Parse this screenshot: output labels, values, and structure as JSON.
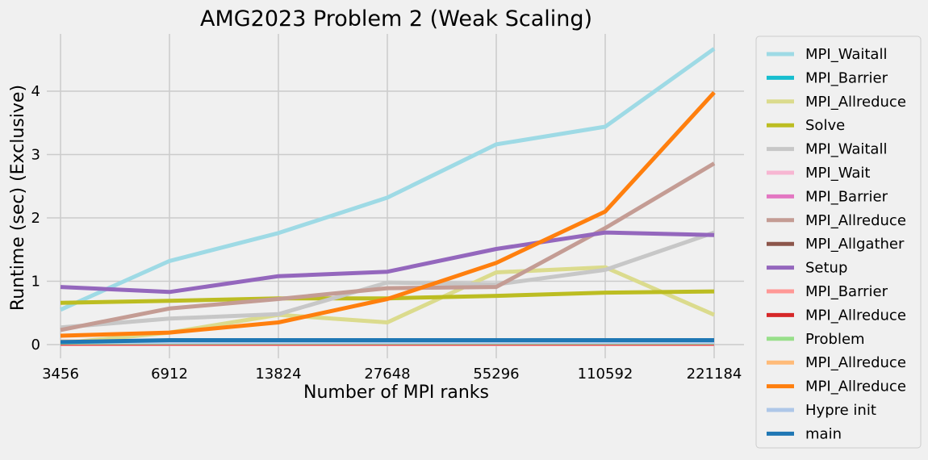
{
  "chart_data": {
    "type": "line",
    "title": "AMG2023 Problem 2 (Weak Scaling)",
    "xlabel": "Number of MPI ranks",
    "ylabel": "Runtime (sec) (Exclusive)",
    "categories": [
      "3456",
      "6912",
      "13824",
      "27648",
      "55296",
      "110592",
      "221184"
    ],
    "ylim": [
      0,
      4.9
    ],
    "yticks": [
      0,
      1,
      2,
      3,
      4
    ],
    "grid": true,
    "legend_position": "right-outside",
    "series": [
      {
        "name": "MPI_Waitall",
        "color": "#9edae5",
        "values": [
          0.55,
          1.32,
          1.76,
          2.32,
          3.16,
          3.44,
          4.67
        ]
      },
      {
        "name": "MPI_Barrier",
        "color": "#17becf",
        "values": [
          0.01,
          0.01,
          0.01,
          0.01,
          0.01,
          0.01,
          0.01
        ]
      },
      {
        "name": "MPI_Allreduce",
        "color": "#dbdb8d",
        "values": [
          0.02,
          0.19,
          0.47,
          0.35,
          1.14,
          1.22,
          0.47
        ]
      },
      {
        "name": "Solve",
        "color": "#bcbd22",
        "values": [
          0.66,
          0.69,
          0.73,
          0.73,
          0.77,
          0.82,
          0.84
        ]
      },
      {
        "name": "MPI_Waitall",
        "color": "#c7c7c7",
        "values": [
          0.27,
          0.41,
          0.48,
          0.98,
          0.95,
          1.18,
          1.77
        ]
      },
      {
        "name": "MPI_Wait",
        "color": "#f7b6d2",
        "values": [
          0.01,
          0.01,
          0.01,
          0.01,
          0.01,
          0.01,
          0.01
        ]
      },
      {
        "name": "MPI_Barrier",
        "color": "#e377c2",
        "values": [
          0.01,
          0.01,
          0.01,
          0.01,
          0.01,
          0.01,
          0.01
        ]
      },
      {
        "name": "MPI_Allreduce",
        "color": "#c49c94",
        "values": [
          0.23,
          0.57,
          0.72,
          0.89,
          0.91,
          1.84,
          2.86
        ]
      },
      {
        "name": "MPI_Allgather",
        "color": "#8c564b",
        "values": [
          0.02,
          0.02,
          0.02,
          0.02,
          0.02,
          0.02,
          0.02
        ]
      },
      {
        "name": "Setup",
        "color": "#9467bd",
        "values": [
          0.91,
          0.83,
          1.08,
          1.15,
          1.51,
          1.77,
          1.73
        ]
      },
      {
        "name": "MPI_Barrier",
        "color": "#ff9896",
        "values": [
          0.01,
          0.01,
          0.01,
          0.01,
          0.01,
          0.01,
          0.01
        ]
      },
      {
        "name": "MPI_Allreduce",
        "color": "#d62728",
        "values": [
          0.02,
          0.02,
          0.02,
          0.02,
          0.02,
          0.02,
          0.02
        ]
      },
      {
        "name": "Problem",
        "color": "#98df8a",
        "values": [
          0.03,
          0.03,
          0.03,
          0.03,
          0.03,
          0.03,
          0.03
        ]
      },
      {
        "name": "MPI_Allreduce",
        "color": "#ffbb78",
        "values": [
          0.05,
          0.05,
          0.05,
          0.05,
          0.05,
          0.05,
          0.05
        ]
      },
      {
        "name": "MPI_Allreduce",
        "color": "#ff7f0e",
        "values": [
          0.14,
          0.19,
          0.35,
          0.72,
          1.29,
          2.1,
          3.98
        ]
      },
      {
        "name": "Hypre init",
        "color": "#aec7e8",
        "values": [
          0.04,
          0.04,
          0.04,
          0.04,
          0.04,
          0.04,
          0.04
        ]
      },
      {
        "name": "main",
        "color": "#1f77b4",
        "values": [
          0.04,
          0.07,
          0.07,
          0.07,
          0.07,
          0.07,
          0.07
        ]
      }
    ]
  }
}
